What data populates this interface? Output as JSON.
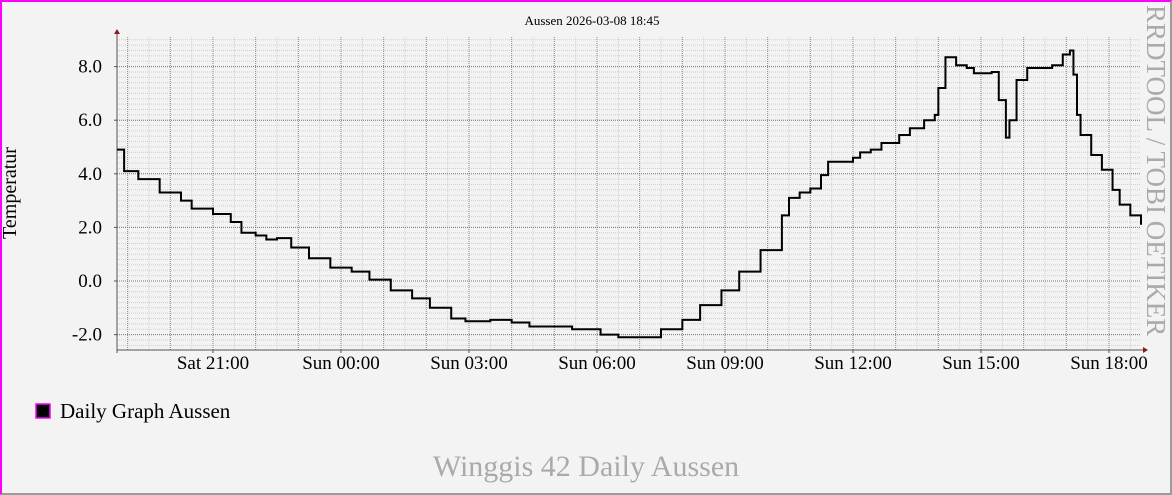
{
  "chart_data": {
    "type": "line",
    "title": "Aussen 2026-03-08 18:45",
    "ylabel": "Temperatur",
    "xlabel": "",
    "ylim": [
      -2.6,
      9.1
    ],
    "xlim": [
      "2026-03-07 18:45",
      "2026-03-08 18:45"
    ],
    "yticks": [
      {
        "value": -2,
        "label": "-2.0"
      },
      {
        "value": 0,
        "label": "0.0"
      },
      {
        "value": 2,
        "label": "2.0"
      },
      {
        "value": 4,
        "label": "4.0"
      },
      {
        "value": 6,
        "label": "6.0"
      },
      {
        "value": 8,
        "label": "8.0"
      }
    ],
    "xticks": [
      {
        "time": "2026-03-07 21:00",
        "label": "Sat 21:00"
      },
      {
        "time": "2026-03-08 00:00",
        "label": "Sun 00:00"
      },
      {
        "time": "2026-03-08 03:00",
        "label": "Sun 03:00"
      },
      {
        "time": "2026-03-08 06:00",
        "label": "Sun 06:00"
      },
      {
        "time": "2026-03-08 09:00",
        "label": "Sun 09:00"
      },
      {
        "time": "2026-03-08 12:00",
        "label": "Sun 12:00"
      },
      {
        "time": "2026-03-08 15:00",
        "label": "Sun 15:00"
      },
      {
        "time": "2026-03-08 18:00",
        "label": "Sun 18:00"
      }
    ],
    "grid": true,
    "legend_position": "bottom-left",
    "series": [
      {
        "name": "Daily Graph Aussen",
        "color": "#000000",
        "legend_swatch_border": "#ff00ff",
        "x": [
          "2026-03-07 18:45",
          "2026-03-07 18:55",
          "2026-03-07 19:15",
          "2026-03-07 19:45",
          "2026-03-07 20:15",
          "2026-03-07 20:30",
          "2026-03-07 21:00",
          "2026-03-07 21:25",
          "2026-03-07 21:40",
          "2026-03-07 22:00",
          "2026-03-07 22:15",
          "2026-03-07 22:30",
          "2026-03-07 22:50",
          "2026-03-07 23:15",
          "2026-03-07 23:45",
          "2026-03-08 00:15",
          "2026-03-08 00:40",
          "2026-03-08 01:10",
          "2026-03-08 01:40",
          "2026-03-08 02:05",
          "2026-03-08 02:35",
          "2026-03-08 02:55",
          "2026-03-08 03:30",
          "2026-03-08 04:00",
          "2026-03-08 04:25",
          "2026-03-08 04:55",
          "2026-03-08 05:25",
          "2026-03-08 06:05",
          "2026-03-08 06:30",
          "2026-03-08 07:10",
          "2026-03-08 07:30",
          "2026-03-08 08:00",
          "2026-03-08 08:25",
          "2026-03-08 08:55",
          "2026-03-08 09:20",
          "2026-03-08 09:50",
          "2026-03-08 10:20",
          "2026-03-08 10:30",
          "2026-03-08 10:45",
          "2026-03-08 11:00",
          "2026-03-08 11:15",
          "2026-03-08 11:25",
          "2026-03-08 12:00",
          "2026-03-08 12:10",
          "2026-03-08 12:25",
          "2026-03-08 12:40",
          "2026-03-08 13:05",
          "2026-03-08 13:20",
          "2026-03-08 13:40",
          "2026-03-08 13:55",
          "2026-03-08 14:00",
          "2026-03-08 14:10",
          "2026-03-08 14:25",
          "2026-03-08 14:40",
          "2026-03-08 14:50",
          "2026-03-08 15:15",
          "2026-03-08 15:25",
          "2026-03-08 15:35",
          "2026-03-08 15:40",
          "2026-03-08 15:50",
          "2026-03-08 16:05",
          "2026-03-08 16:20",
          "2026-03-08 16:40",
          "2026-03-08 16:55",
          "2026-03-08 17:05",
          "2026-03-08 17:10",
          "2026-03-08 17:15",
          "2026-03-08 17:20",
          "2026-03-08 17:35",
          "2026-03-08 17:50",
          "2026-03-08 18:05",
          "2026-03-08 18:15",
          "2026-03-08 18:30",
          "2026-03-08 18:45"
        ],
        "values": [
          4.9,
          4.1,
          3.8,
          3.3,
          3.0,
          2.7,
          2.5,
          2.2,
          1.8,
          1.7,
          1.55,
          1.6,
          1.25,
          0.85,
          0.5,
          0.35,
          0.05,
          -0.35,
          -0.65,
          -1.0,
          -1.4,
          -1.5,
          -1.45,
          -1.55,
          -1.7,
          -1.7,
          -1.8,
          -2.0,
          -2.1,
          -2.1,
          -1.8,
          -1.45,
          -0.9,
          -0.35,
          0.35,
          1.15,
          2.45,
          3.1,
          3.3,
          3.45,
          3.95,
          4.45,
          4.6,
          4.8,
          4.9,
          5.15,
          5.45,
          5.7,
          6.0,
          6.2,
          7.2,
          8.35,
          8.05,
          7.95,
          7.75,
          7.8,
          6.75,
          5.35,
          6.0,
          7.5,
          7.95,
          7.95,
          8.05,
          8.45,
          8.6,
          7.7,
          6.2,
          5.45,
          4.7,
          4.15,
          3.4,
          2.85,
          2.45,
          2.1
        ]
      }
    ],
    "watermark": "RRDTOOL / TOBI OETIKER",
    "footer": "Winggis 42 Daily Aussen"
  }
}
